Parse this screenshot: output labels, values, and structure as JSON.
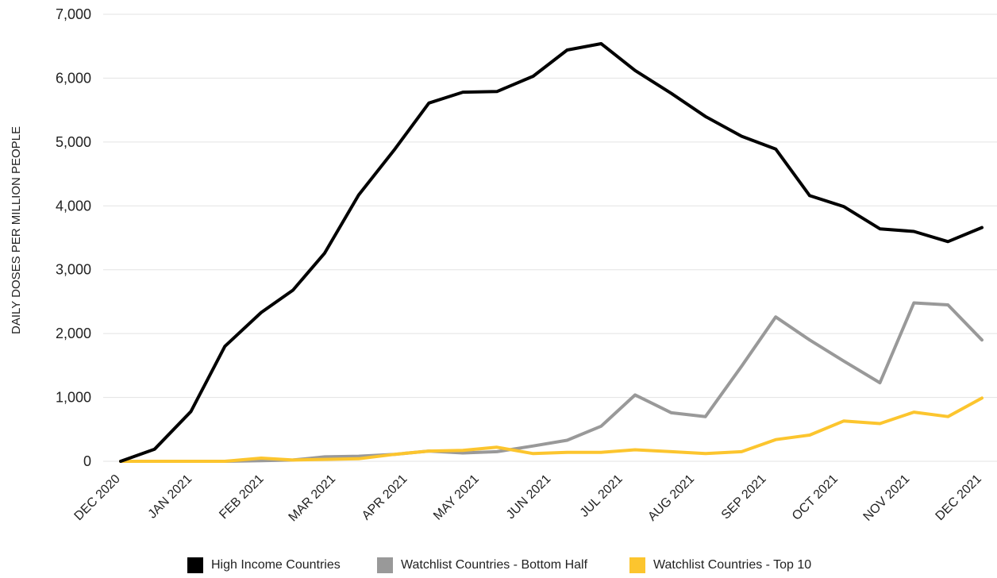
{
  "chart_data": {
    "type": "line",
    "title": "",
    "xlabel": "",
    "ylabel": "DAILY DOSES PER MILLION PEOPLE",
    "ylim": [
      0,
      7000
    ],
    "yticks": [
      0,
      1000,
      2000,
      3000,
      4000,
      5000,
      6000,
      7000
    ],
    "ytick_labels": [
      "0",
      "1,000",
      "2,000",
      "3,000",
      "4,000",
      "5,000",
      "6,000",
      "7,000"
    ],
    "x_tick_labels": [
      "DEC 2020",
      "JAN 2021",
      "FEB 2021",
      "MAR 2021",
      "APR 2021",
      "MAY 2021",
      "JUN 2021",
      "JUL 2021",
      "AUG 2021",
      "SEP 2021",
      "OCT 2021",
      "NOV 2021",
      "DEC 2021"
    ],
    "grid": true,
    "legend_position": "bottom",
    "x": [
      "2020-12-01",
      "2020-12-16",
      "2021-01-01",
      "2021-01-16",
      "2021-02-01",
      "2021-02-15",
      "2021-03-01",
      "2021-03-16",
      "2021-04-01",
      "2021-04-16",
      "2021-05-01",
      "2021-05-16",
      "2021-06-01",
      "2021-06-16",
      "2021-07-01",
      "2021-07-16",
      "2021-08-01",
      "2021-08-16",
      "2021-09-01",
      "2021-09-16",
      "2021-10-01",
      "2021-10-16",
      "2021-11-01",
      "2021-11-16",
      "2021-12-01",
      "2021-12-16"
    ],
    "series": [
      {
        "name": "High Income Countries",
        "color": "#000000",
        "values": [
          0,
          190,
          780,
          1800,
          2330,
          2680,
          3260,
          4170,
          4890,
          5610,
          5780,
          5790,
          6030,
          6440,
          6540,
          6120,
          5760,
          5400,
          5090,
          4890,
          4160,
          3990,
          3640,
          3600,
          3440,
          3660
        ]
      },
      {
        "name": "Watchlist Countries - Bottom Half",
        "color": "#999999",
        "values": [
          0,
          0,
          0,
          0,
          10,
          20,
          70,
          80,
          110,
          160,
          130,
          150,
          240,
          330,
          550,
          1040,
          760,
          700,
          1490,
          2260,
          1900,
          1570,
          1230,
          2480,
          2450,
          1900
        ]
      },
      {
        "name": "Watchlist Countries - Top 10",
        "color": "#FCC52E",
        "values": [
          0,
          0,
          0,
          0,
          50,
          20,
          30,
          40,
          110,
          160,
          170,
          220,
          120,
          140,
          140,
          180,
          150,
          120,
          150,
          340,
          410,
          630,
          590,
          770,
          700,
          990
        ]
      }
    ]
  }
}
